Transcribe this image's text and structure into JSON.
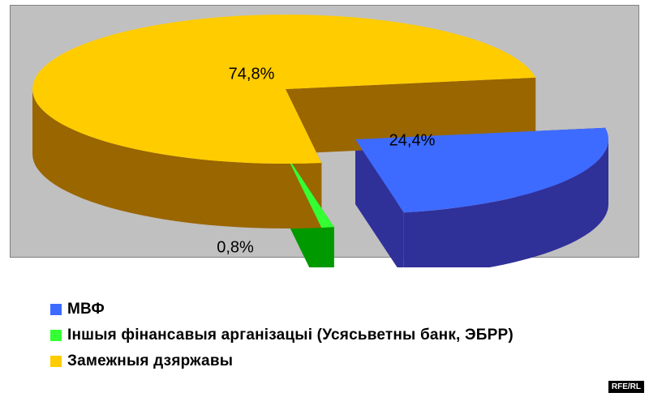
{
  "chart_data": {
    "type": "pie",
    "categories": [
      "МВФ",
      "Іншыя фінансавыя арганізацыі (Усясьветны банк, ЭБРР)",
      "Замежныя дзяржавы"
    ],
    "values": [
      24.4,
      0.8,
      74.8
    ],
    "data_labels": [
      "24,4%",
      "0,8%",
      "74,8%"
    ],
    "colors": [
      "#3e6bff",
      "#33ff33",
      "#ffcc00"
    ],
    "side_colors": [
      "#303099",
      "#009900",
      "#996600"
    ],
    "legend_position": "bottom-left",
    "three_d": true,
    "exploded": true
  },
  "watermark": "RFE/RL"
}
